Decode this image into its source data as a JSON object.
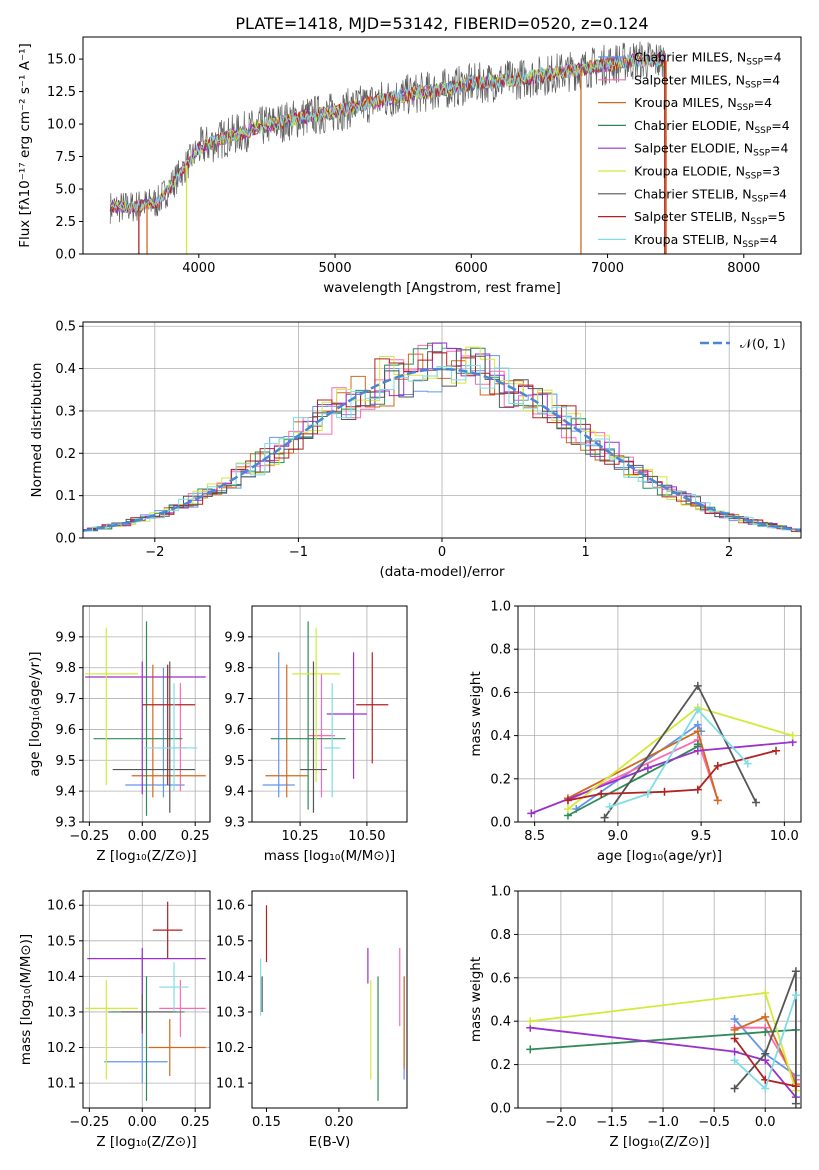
{
  "title": "PLATE=1418, MJD=53142, FIBERID=0520, z=0.124",
  "colors": {
    "chabrier_miles": "#6495ed",
    "salpeter_miles": "#ff69b4",
    "kroupa_miles": "#d2691e",
    "chabrier_elodie": "#2e8b57",
    "salpeter_elodie": "#9932cc",
    "kroupa_elodie": "#d4ea3a",
    "chabrier_stelib": "#555555",
    "salpeter_stelib": "#b22222",
    "kroupa_stelib": "#7fdde6"
  },
  "chart_data": [
    {
      "id": "spectrum",
      "type": "line",
      "xlabel": "wavelength [Angstrom, rest frame]",
      "ylabel": "Flux [fλ10⁻¹⁷ erg cm⁻² s⁻¹ A⁻¹]",
      "xlim": [
        3150,
        8420
      ],
      "ylim": [
        0,
        16.7
      ],
      "xticks": [
        "4000",
        "5000",
        "6000",
        "7000",
        "8000"
      ],
      "yticks": [
        "0.0",
        "2.5",
        "5.0",
        "7.5",
        "10.0",
        "12.5",
        "15.0"
      ],
      "legend_position": "right",
      "series": [
        {
          "name": "Chabrier MILES, N_SSP=4",
          "color": "#6495ed"
        },
        {
          "name": "Salpeter MILES, N_SSP=4",
          "color": "#ff69b4"
        },
        {
          "name": "Kroupa MILES, N_SSP=4",
          "color": "#d2691e"
        },
        {
          "name": "Chabrier ELODIE, N_SSP=4",
          "color": "#2e8b57"
        },
        {
          "name": "Salpeter ELODIE, N_SSP=4",
          "color": "#9932cc"
        },
        {
          "name": "Kroupa ELODIE, N_SSP=3",
          "color": "#d4ea3a"
        },
        {
          "name": "Chabrier STELIB, N_SSP=4",
          "color": "#555555"
        },
        {
          "name": "Salpeter STELIB, N_SSP=5",
          "color": "#b22222"
        },
        {
          "name": "Kroupa STELIB, N_SSP=4",
          "color": "#7fdde6"
        }
      ],
      "continuum": {
        "x": [
          3350,
          3500,
          3700,
          3850,
          4000,
          4200,
          4500,
          4800,
          5000,
          5200,
          5500,
          5800,
          6000,
          6300,
          6500,
          6800,
          7000,
          7200,
          7430
        ],
        "y": [
          3.6,
          3.6,
          4.0,
          6.0,
          8.1,
          9.0,
          9.9,
          10.6,
          10.9,
          11.5,
          12.2,
          12.7,
          13.1,
          13.4,
          13.7,
          14.2,
          14.6,
          14.9,
          14.9
        ]
      }
    },
    {
      "id": "residuals",
      "type": "line",
      "xlabel": "(data-model)/error",
      "ylabel": "Normed distribution",
      "xlim": [
        -2.5,
        2.5
      ],
      "ylim": [
        0,
        0.51
      ],
      "xticks": [
        "−2",
        "−1",
        "0",
        "1",
        "2"
      ],
      "yticks": [
        "0.0",
        "0.1",
        "0.2",
        "0.3",
        "0.4",
        "0.5"
      ],
      "legend": "𝒩(0, 1)",
      "legend_position": "top-right",
      "grid": true
    },
    {
      "id": "age_vs_Z",
      "type": "scatter",
      "xlabel": "Z [log₁₀(Z/Z⊙)]",
      "ylabel": "age  [log₁₀(age/yr)]",
      "xlim": [
        -0.28,
        0.32
      ],
      "ylim": [
        9.3,
        10.0
      ],
      "xticks": [
        "−0.25",
        "0.00",
        "0.25"
      ],
      "yticks": [
        "9.3",
        "9.4",
        "9.5",
        "9.6",
        "9.7",
        "9.8",
        "9.9"
      ],
      "grid": true,
      "points": [
        {
          "x": 0.1,
          "y": 9.42,
          "xerr": [
            0.18,
            0.1
          ],
          "yerr": [
            0.04,
            0.38
          ],
          "color": "#6495ed"
        },
        {
          "x": 0.18,
          "y": 9.54,
          "xerr": [
            0.03,
            0.03
          ],
          "yerr": [
            0.14,
            0.21
          ],
          "color": "#ff69b4"
        },
        {
          "x": 0.05,
          "y": 9.45,
          "xerr": [
            0.1,
            0.25
          ],
          "yerr": [
            0.07,
            0.36
          ],
          "color": "#d2691e"
        },
        {
          "x": 0.02,
          "y": 9.57,
          "xerr": [
            0.25,
            0.17
          ],
          "yerr": [
            0.25,
            0.38
          ],
          "color": "#2e8b57"
        },
        {
          "x": 0.0,
          "y": 9.77,
          "xerr": [
            0.27,
            0.3
          ],
          "yerr": [
            0.38,
            0.05
          ],
          "color": "#9932cc"
        },
        {
          "x": -0.17,
          "y": 9.78,
          "xerr": [
            0.1,
            0.15
          ],
          "yerr": [
            0.36,
            0.15
          ],
          "color": "#d4ea3a"
        },
        {
          "x": 0.13,
          "y": 9.47,
          "xerr": [
            0.27,
            0.12
          ],
          "yerr": [
            0.14,
            0.35
          ],
          "color": "#555555"
        },
        {
          "x": 0.12,
          "y": 9.68,
          "xerr": [
            0.12,
            0.13
          ],
          "yerr": [
            0.26,
            0.13
          ],
          "color": "#b22222"
        },
        {
          "x": 0.15,
          "y": 9.54,
          "xerr": [
            0.14,
            0.11
          ],
          "yerr": [
            0.14,
            0.21
          ],
          "color": "#7fdde6"
        }
      ]
    },
    {
      "id": "age_vs_mass",
      "type": "scatter",
      "xlabel": "mass [log₁₀(M/M⊙)]",
      "xlim": [
        10.07,
        10.65
      ],
      "ylim": [
        9.3,
        10.0
      ],
      "xticks": [
        "10.25",
        "10.50"
      ],
      "yticks": [
        "9.3",
        "9.4",
        "9.5",
        "9.6",
        "9.7",
        "9.8",
        "9.9"
      ],
      "grid": true,
      "points": [
        {
          "x": 10.17,
          "y": 9.42,
          "xerr": [
            0.06,
            0.06
          ],
          "yerr": [
            0.04,
            0.43
          ],
          "color": "#6495ed"
        },
        {
          "x": 10.33,
          "y": 9.58,
          "xerr": [
            0.05,
            0.05
          ],
          "yerr": [
            0.2,
            0.2
          ],
          "color": "#ff69b4"
        },
        {
          "x": 10.2,
          "y": 9.45,
          "xerr": [
            0.08,
            0.08
          ],
          "yerr": [
            0.07,
            0.36
          ],
          "color": "#d2691e"
        },
        {
          "x": 10.28,
          "y": 9.57,
          "xerr": [
            0.14,
            0.14
          ],
          "yerr": [
            0.23,
            0.38
          ],
          "color": "#2e8b57"
        },
        {
          "x": 10.45,
          "y": 9.65,
          "xerr": [
            0.1,
            0.05
          ],
          "yerr": [
            0.21,
            0.2
          ],
          "color": "#9932cc"
        },
        {
          "x": 10.31,
          "y": 9.78,
          "xerr": [
            0.09,
            0.09
          ],
          "yerr": [
            0.35,
            0.15
          ],
          "color": "#d4ea3a"
        },
        {
          "x": 10.3,
          "y": 9.47,
          "xerr": [
            0.05,
            0.05
          ],
          "yerr": [
            0.14,
            0.35
          ],
          "color": "#555555"
        },
        {
          "x": 10.52,
          "y": 9.68,
          "xerr": [
            0.06,
            0.06
          ],
          "yerr": [
            0.19,
            0.17
          ],
          "color": "#b22222"
        },
        {
          "x": 10.37,
          "y": 9.54,
          "xerr": [
            0.03,
            0.03
          ],
          "yerr": [
            0.16,
            0.21
          ],
          "color": "#7fdde6"
        }
      ]
    },
    {
      "id": "mass_weight_vs_age",
      "type": "line",
      "xlabel": "age  [log₁₀(age/yr)]",
      "ylabel": "mass weight",
      "xlim": [
        8.4,
        10.1
      ],
      "ylim": [
        0,
        1
      ],
      "xticks": [
        "8.5",
        "9.0",
        "9.5",
        "10.0"
      ],
      "yticks": [
        "0.0",
        "0.2",
        "0.4",
        "0.6",
        "0.8",
        "1.0"
      ],
      "grid": true,
      "series": [
        {
          "color": "#6495ed",
          "x": [
            8.75,
            9.48,
            9.5
          ],
          "y": [
            0.06,
            0.45,
            0.42
          ]
        },
        {
          "color": "#ff69b4",
          "x": [
            8.7,
            9.48,
            9.6
          ],
          "y": [
            0.1,
            0.38,
            0.1
          ]
        },
        {
          "color": "#d2691e",
          "x": [
            8.7,
            9.48,
            9.6
          ],
          "y": [
            0.11,
            0.42,
            0.1
          ]
        },
        {
          "color": "#2e8b57",
          "x": [
            8.7,
            9.48,
            9.48
          ],
          "y": [
            0.03,
            0.35,
            0.36
          ]
        },
        {
          "color": "#9932cc",
          "x": [
            8.48,
            9.18,
            9.48,
            10.05
          ],
          "y": [
            0.04,
            0.25,
            0.33,
            0.37
          ]
        },
        {
          "color": "#d4ea3a",
          "x": [
            8.7,
            9.48,
            10.05
          ],
          "y": [
            0.06,
            0.53,
            0.4
          ]
        },
        {
          "color": "#555555",
          "x": [
            8.92,
            9.48,
            9.83
          ],
          "y": [
            0.02,
            0.63,
            0.09
          ]
        },
        {
          "color": "#b22222",
          "x": [
            8.7,
            8.9,
            9.28,
            9.48,
            9.6,
            9.95
          ],
          "y": [
            0.1,
            0.13,
            0.14,
            0.15,
            0.26,
            0.33
          ]
        },
        {
          "color": "#7fdde6",
          "x": [
            8.95,
            9.18,
            9.48,
            9.78
          ],
          "y": [
            0.07,
            0.13,
            0.52,
            0.27
          ]
        }
      ]
    },
    {
      "id": "mass_vs_Z",
      "type": "scatter",
      "xlabel": "Z [log₁₀(Z/Z⊙)]",
      "ylabel": "mass [log₁₀(M/M⊙)]",
      "xlim": [
        -0.28,
        0.32
      ],
      "ylim": [
        10.03,
        10.64
      ],
      "xticks": [
        "−0.25",
        "0.00",
        "0.25"
      ],
      "yticks": [
        "10.1",
        "10.2",
        "10.3",
        "10.4",
        "10.5",
        "10.6"
      ],
      "grid": true,
      "points": [
        {
          "x": 0.0,
          "y": 10.16,
          "xerr": [
            0.18,
            0.12
          ],
          "yerr": [
            0.06,
            0.3
          ],
          "color": "#6495ed"
        },
        {
          "x": 0.18,
          "y": 10.31,
          "xerr": [
            0.1,
            0.12
          ],
          "yerr": [
            0.08,
            0.08
          ],
          "color": "#ff69b4"
        },
        {
          "x": 0.13,
          "y": 10.2,
          "xerr": [
            0.1,
            0.17
          ],
          "yerr": [
            0.08,
            0.08
          ],
          "color": "#d2691e"
        },
        {
          "x": 0.02,
          "y": 10.3,
          "xerr": [
            0.18,
            0.18
          ],
          "yerr": [
            0.25,
            0.1
          ],
          "color": "#2e8b57"
        },
        {
          "x": 0.0,
          "y": 10.45,
          "xerr": [
            0.26,
            0.3
          ],
          "yerr": [
            0.21,
            0.03
          ],
          "color": "#9932cc"
        },
        {
          "x": -0.17,
          "y": 10.31,
          "xerr": [
            0.1,
            0.15
          ],
          "yerr": [
            0.2,
            0.08
          ],
          "color": "#d4ea3a"
        },
        {
          "x": 0.0,
          "y": 10.3,
          "xerr": [
            0.1,
            0.16
          ],
          "yerr": [
            0.05,
            0.05
          ],
          "color": "#555555"
        },
        {
          "x": 0.12,
          "y": 10.53,
          "xerr": [
            0.07,
            0.07
          ],
          "yerr": [
            0.08,
            0.08
          ],
          "color": "#b22222"
        },
        {
          "x": 0.15,
          "y": 10.37,
          "xerr": [
            0.07,
            0.07
          ],
          "yerr": [
            0.07,
            0.07
          ],
          "color": "#7fdde6"
        }
      ]
    },
    {
      "id": "mass_vs_ebv",
      "type": "scatter",
      "xlabel": "E(B-V)",
      "xlim": [
        0.14,
        0.247
      ],
      "ylim": [
        10.03,
        10.64
      ],
      "xticks": [
        "0.15",
        "0.20"
      ],
      "yticks": [
        "10.1",
        "10.2",
        "10.3",
        "10.4",
        "10.5",
        "10.6"
      ],
      "points": [
        {
          "x": 0.245,
          "y": 10.2,
          "yerr": [
            0.09,
            0.2
          ],
          "color": "#6495ed"
        },
        {
          "x": 0.242,
          "y": 10.36,
          "yerr": [
            0.1,
            0.12
          ],
          "color": "#ff69b4"
        },
        {
          "x": 0.245,
          "y": 10.3,
          "yerr": [
            0.16,
            0.1
          ],
          "color": "#d2691e"
        },
        {
          "x": 0.227,
          "y": 10.2,
          "yerr": [
            0.15,
            0.2
          ],
          "color": "#2e8b57"
        },
        {
          "x": 0.22,
          "y": 10.43,
          "yerr": [
            0.05,
            0.05
          ],
          "color": "#9932cc"
        },
        {
          "x": 0.222,
          "y": 10.25,
          "yerr": [
            0.14,
            0.14
          ],
          "color": "#d4ea3a"
        },
        {
          "x": 0.147,
          "y": 10.35,
          "yerr": [
            0.05,
            0.05
          ],
          "color": "#555555"
        },
        {
          "x": 0.15,
          "y": 10.52,
          "yerr": [
            0.08,
            0.08
          ],
          "color": "#b22222"
        },
        {
          "x": 0.146,
          "y": 10.37,
          "yerr": [
            0.08,
            0.08
          ],
          "color": "#7fdde6"
        }
      ]
    },
    {
      "id": "mass_weight_vs_Z",
      "type": "line",
      "xlabel": "Z [log₁₀(Z/Z⊙)]",
      "ylabel": "mass weight",
      "xlim": [
        -2.42,
        0.35
      ],
      "ylim": [
        0,
        1
      ],
      "xticks": [
        "−2.0",
        "−1.5",
        "−1.0",
        "−0.5",
        "0.0"
      ],
      "yticks": [
        "0.0",
        "0.2",
        "0.4",
        "0.6",
        "0.8",
        "1.0"
      ],
      "grid": true,
      "series": [
        {
          "color": "#6495ed",
          "x": [
            -0.3,
            0.0,
            0.3
          ],
          "y": [
            0.41,
            0.25,
            0.15
          ]
        },
        {
          "color": "#ff69b4",
          "x": [
            -0.3,
            0.0,
            0.3
          ],
          "y": [
            0.37,
            0.37,
            0.13
          ]
        },
        {
          "color": "#d2691e",
          "x": [
            -0.3,
            0.0,
            0.3
          ],
          "y": [
            0.36,
            0.42,
            0.11
          ]
        },
        {
          "color": "#2e8b57",
          "x": [
            -2.3,
            0.0,
            0.3
          ],
          "y": [
            0.27,
            0.35,
            0.36
          ]
        },
        {
          "color": "#9932cc",
          "x": [
            -2.3,
            -0.3,
            0.0,
            0.3
          ],
          "y": [
            0.37,
            0.26,
            0.22,
            0.05
          ]
        },
        {
          "color": "#d4ea3a",
          "x": [
            -2.3,
            0.0,
            0.3
          ],
          "y": [
            0.4,
            0.53,
            0.08
          ]
        },
        {
          "color": "#555555",
          "x": [
            -0.3,
            0.0,
            0.3,
            0.3
          ],
          "y": [
            0.09,
            0.25,
            0.63,
            0.02
          ]
        },
        {
          "color": "#b22222",
          "x": [
            -0.3,
            0.0,
            0.3
          ],
          "y": [
            0.32,
            0.13,
            0.1
          ]
        },
        {
          "color": "#7fdde6",
          "x": [
            -0.3,
            0.0,
            0.3
          ],
          "y": [
            0.22,
            0.09,
            0.52
          ]
        }
      ]
    }
  ]
}
